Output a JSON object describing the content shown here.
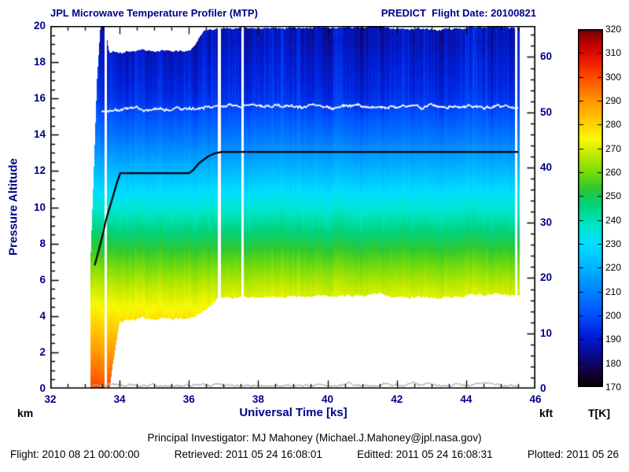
{
  "header": {
    "title": "JPL Microwave Temperature Profiler (MTP)",
    "flight_label": "PREDICT  Flight Date: 20100821"
  },
  "axes": {
    "x": {
      "label": "Universal Time [ks]",
      "min": 32,
      "max": 46,
      "major_ticks": [
        32,
        34,
        36,
        38,
        40,
        42,
        44,
        46
      ],
      "minor_step": 0.5
    },
    "y_left": {
      "label": "Pressure Altitude",
      "unit": "km",
      "min": 0,
      "max": 20,
      "major_ticks": [
        0,
        2,
        4,
        6,
        8,
        10,
        12,
        14,
        16,
        18,
        20
      ],
      "minor_step": 0.5
    },
    "y_right": {
      "unit": "kft",
      "major_ticks": [
        0,
        10,
        20,
        30,
        40,
        50,
        60
      ],
      "minor_step": 2,
      "km_per_kft": 0.3048
    }
  },
  "colorbar": {
    "label": "T[K]",
    "min": 170,
    "max": 320,
    "ticks": [
      170,
      180,
      190,
      200,
      210,
      220,
      230,
      240,
      250,
      260,
      270,
      280,
      290,
      300,
      310,
      320
    ]
  },
  "footer": {
    "pi_line": "Principal Investigator: MJ Mahoney (Michael.J.Mahoney@jpl.nasa.gov)",
    "flight": "Flight: 2010 08 21 00:00:00",
    "retrieved": "Retrieved: 2011 05 24 16:08:01",
    "editted": "Editted: 2011 05 24 16:08:31",
    "plotted": "Plotted: 2011 05 26"
  },
  "colors": {
    "axis_text": "#00008b",
    "footer_text": "#000000",
    "plot_border": "#000000"
  },
  "chart_data": {
    "type": "heatmap",
    "title": "JPL Microwave Temperature Profiler (MTP)",
    "subtitle": "PREDICT Flight Date: 20100821",
    "xlabel": "Universal Time [ks]",
    "ylabel": "Pressure Altitude [km]",
    "y2label": "Pressure Altitude [kft]",
    "colorbar_label": "T[K]",
    "x_range": [
      32,
      46
    ],
    "y_range_km": [
      0,
      20
    ],
    "temperature_range_K": [
      170,
      320
    ],
    "data_time_span_ks": [
      33.15,
      45.55
    ],
    "temperature_profile": {
      "altitude_km": [
        0,
        2,
        4,
        5,
        6,
        8,
        10,
        12,
        13,
        14,
        15,
        15.8,
        16.5,
        17.5,
        18.5,
        19.3,
        20
      ],
      "temperature_K": [
        300,
        289,
        277,
        271,
        265,
        251,
        236,
        221,
        214,
        207,
        201,
        196,
        194,
        192,
        190,
        188,
        189
      ]
    },
    "envelope": [
      [
        33.15,
        0,
        6.5
      ],
      [
        33.35,
        0,
        17
      ],
      [
        33.45,
        0,
        20
      ],
      [
        33.58,
        0,
        20
      ],
      [
        33.7,
        0,
        18.6
      ],
      [
        34.0,
        3.85,
        18.65
      ],
      [
        36.05,
        3.9,
        18.65
      ],
      [
        36.45,
        4.4,
        19.85
      ],
      [
        36.84,
        5.05,
        19.9
      ],
      [
        45.55,
        5.15,
        19.9
      ]
    ],
    "gaps_ks": [
      [
        33.56,
        33.63
      ],
      [
        36.84,
        36.92
      ],
      [
        37.52,
        37.58
      ],
      [
        45.42,
        45.48
      ]
    ],
    "aircraft_altitude_track": {
      "color": "#000000",
      "points_ks_km": [
        [
          33.28,
          6.8
        ],
        [
          33.38,
          7.5
        ],
        [
          33.5,
          8.4
        ],
        [
          33.62,
          9.4
        ],
        [
          33.8,
          10.55
        ],
        [
          33.92,
          11.35
        ],
        [
          34.02,
          11.88
        ],
        [
          36.0,
          11.88
        ],
        [
          36.12,
          12.05
        ],
        [
          36.3,
          12.45
        ],
        [
          36.55,
          12.8
        ],
        [
          36.75,
          12.98
        ],
        [
          36.95,
          13.05
        ],
        [
          45.5,
          13.05
        ]
      ]
    },
    "tropopause_trace": {
      "color": "#ffffff",
      "span_ks": [
        33.48,
        45.5
      ],
      "base_altitude_km": [
        [
          33.48,
          15.32
        ],
        [
          33.9,
          15.32
        ],
        [
          34.2,
          15.42
        ],
        [
          36.2,
          15.42
        ],
        [
          36.6,
          15.6
        ],
        [
          38.5,
          15.57
        ],
        [
          45.5,
          15.5
        ]
      ],
      "jitter_km": 0.12
    },
    "surface_trace": {
      "color": "#b2b2b2",
      "span_ks": [
        33.2,
        45.5
      ],
      "base_altitude_km": 0.12,
      "bumps": [
        [
          33.8,
          0.1
        ],
        [
          40.6,
          0.16
        ],
        [
          41.7,
          0.1
        ],
        [
          44.5,
          0.18
        ]
      ]
    },
    "colormap": [
      [
        170,
        "#000000"
      ],
      [
        176,
        "#16003c"
      ],
      [
        183,
        "#0a0a8c"
      ],
      [
        192,
        "#0020dc"
      ],
      [
        200,
        "#0050ff"
      ],
      [
        210,
        "#0082ff"
      ],
      [
        220,
        "#00b4ff"
      ],
      [
        230,
        "#00e0ff"
      ],
      [
        238,
        "#00e6c8"
      ],
      [
        246,
        "#00d27d"
      ],
      [
        253,
        "#2dc832"
      ],
      [
        260,
        "#78dc0a"
      ],
      [
        268,
        "#c8eb00"
      ],
      [
        274,
        "#fafa00"
      ],
      [
        282,
        "#ffc800"
      ],
      [
        290,
        "#ff9600"
      ],
      [
        298,
        "#ff5a00"
      ],
      [
        306,
        "#f01e00"
      ],
      [
        313,
        "#c80000"
      ],
      [
        318,
        "#8c0000"
      ],
      [
        320,
        "#500000"
      ]
    ]
  }
}
